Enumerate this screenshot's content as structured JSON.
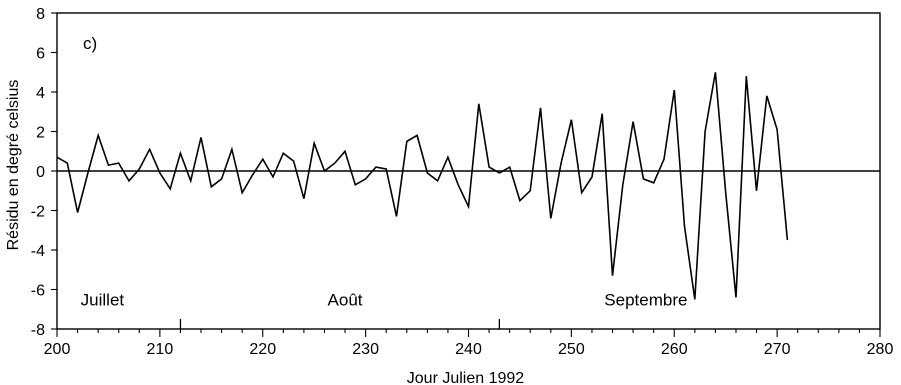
{
  "chart_data": {
    "type": "line",
    "panel_label": "c)",
    "xlabel": "Jour Julien 1992",
    "ylabel": "Résidu en degré celsius",
    "xlim": [
      200,
      280
    ],
    "ylim": [
      -8,
      8
    ],
    "xticks": [
      200,
      210,
      220,
      230,
      240,
      250,
      260,
      270,
      280
    ],
    "yticks": [
      -8,
      -6,
      -4,
      -2,
      0,
      2,
      4,
      6,
      8
    ],
    "zero_line": true,
    "grid": false,
    "month_dividers": [
      212,
      243
    ],
    "annotations": [
      {
        "text": "Juillet",
        "x": 202.3,
        "y": -6.8
      },
      {
        "text": "Août",
        "x": 226.3,
        "y": -6.8
      },
      {
        "text": "Septembre",
        "x": 253.2,
        "y": -6.8
      }
    ],
    "series": [
      {
        "color": "#000000",
        "x": [
          200,
          201,
          202,
          203,
          204,
          205,
          206,
          207,
          208,
          209,
          210,
          211,
          212,
          213,
          214,
          215,
          216,
          217,
          218,
          219,
          220,
          221,
          222,
          223,
          224,
          225,
          226,
          227,
          228,
          229,
          230,
          231,
          232,
          233,
          234,
          235,
          236,
          237,
          238,
          239,
          240,
          241,
          242,
          243,
          244,
          245,
          246,
          247,
          248,
          249,
          250,
          251,
          252,
          253,
          254,
          255,
          256,
          257,
          258,
          259,
          260,
          261,
          262,
          263,
          264,
          265,
          266,
          267,
          268,
          269,
          270,
          271
        ],
        "y": [
          0.7,
          0.4,
          -2.1,
          -0.1,
          1.8,
          0.3,
          0.4,
          -0.5,
          0.1,
          1.1,
          -0.1,
          -0.9,
          0.9,
          -0.5,
          1.7,
          -0.8,
          -0.4,
          1.1,
          -1.1,
          -0.2,
          0.6,
          -0.3,
          0.9,
          0.5,
          -1.4,
          1.4,
          0,
          0.4,
          1.0,
          -0.7,
          -0.4,
          0.2,
          0.1,
          -2.3,
          1.5,
          1.8,
          -0.1,
          -0.5,
          0.7,
          -0.7,
          -1.8,
          3.4,
          0.2,
          -0.1,
          0.2,
          -1.5,
          -1.0,
          3.2,
          -2.4,
          0.4,
          2.6,
          -1.1,
          -0.3,
          2.9,
          -5.3,
          -0.7,
          2.5,
          -0.4,
          -0.6,
          0.6,
          4.1,
          -2.8,
          -6.5,
          2.0,
          5.0,
          -1.1,
          -6.4,
          4.8,
          -1.0,
          3.8,
          2.1,
          -3.5
        ]
      }
    ]
  }
}
